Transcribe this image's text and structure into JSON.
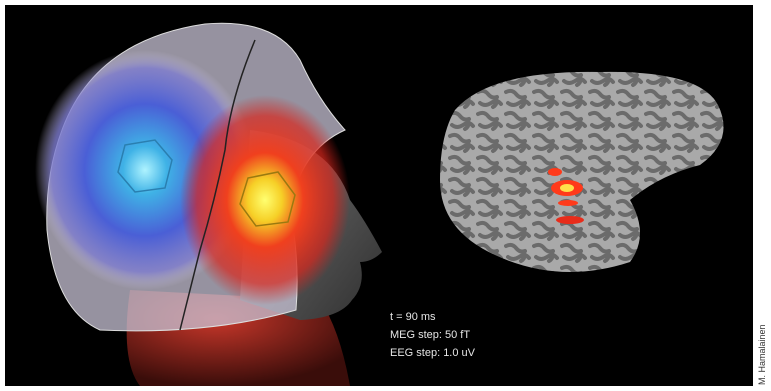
{
  "annotations": {
    "time": "t = 90 ms",
    "meg_step": "MEG step: 50 fT",
    "eeg_step": "EEG step: 1.0 uV"
  },
  "credit": "M. Hamalainen"
}
